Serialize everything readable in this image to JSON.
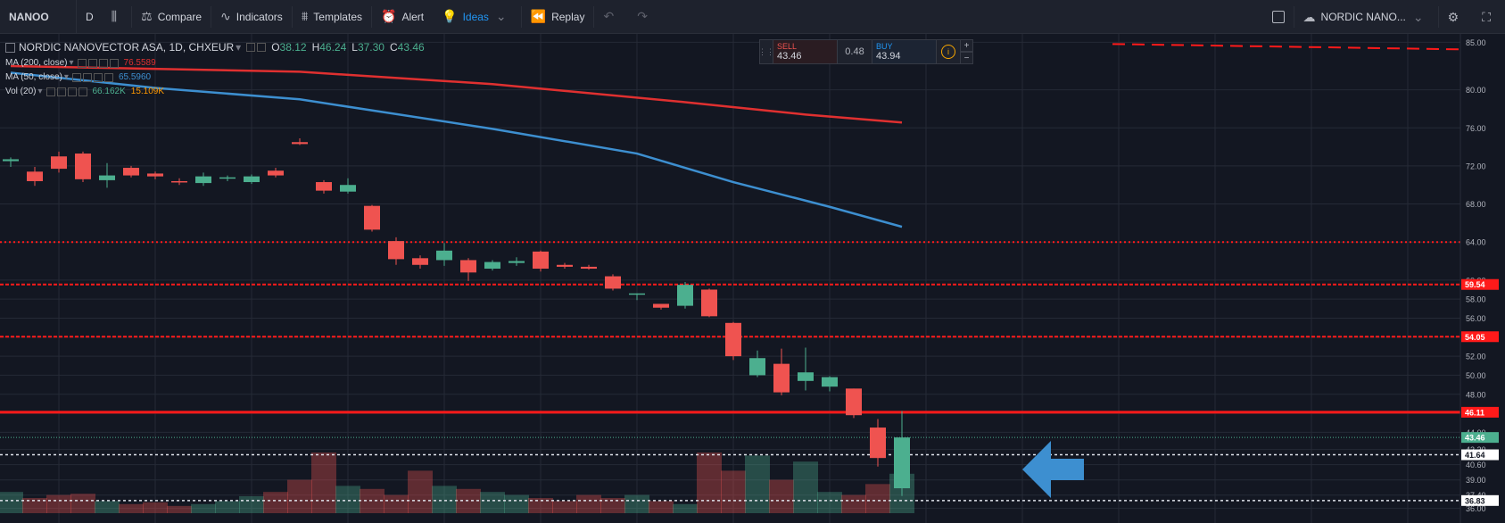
{
  "toolbar": {
    "symbol": "NANOO",
    "interval": "D",
    "compare": "Compare",
    "indicators": "Indicators",
    "templates": "Templates",
    "alert": "Alert",
    "ideas": "Ideas",
    "replay": "Replay",
    "symbol_name_right": "NORDIC NANO..."
  },
  "legend": {
    "title": "NORDIC NANOVECTOR ASA, 1D, CHXEUR",
    "o_label": "O",
    "o": "38.12",
    "h_label": "H",
    "h": "46.24",
    "l_label": "L",
    "l": "37.30",
    "c_label": "C",
    "c": "43.46",
    "ma200_label": "MA (200, close)",
    "ma200_value": "76.5589",
    "ma50_label": "MA (50, close)",
    "ma50_value": "65.5960",
    "vol_label": "Vol (20)",
    "vol_value1": "66.162K",
    "vol_value2": "15.109K"
  },
  "trade": {
    "sell_label": "SELL",
    "sell_price": "43.46",
    "spread": "0.48",
    "buy_label": "BUY",
    "buy_price": "43.94",
    "info": "i",
    "plus": "+",
    "minus": "−"
  },
  "colors": {
    "background": "#131722",
    "up": "#4caf8f",
    "down": "#ef5350",
    "ma200": "#e03030",
    "ma50": "#3d8fd0",
    "level": "#ff1a1a"
  },
  "chart_data": {
    "type": "candlestick",
    "title": "NORDIC NANOVECTOR ASA, 1D, CHXEUR",
    "ylim": [
      35.5,
      85.5
    ],
    "y_ticks": [
      36.0,
      37.4,
      39.0,
      40.6,
      42.2,
      44.0,
      46.0,
      48.0,
      50.0,
      52.0,
      54.0,
      56.0,
      58.0,
      60.0,
      64.0,
      68.0,
      72.0,
      76.0,
      80.0,
      85.0
    ],
    "y_axis_tick_labels": [
      "36.00",
      "37.40",
      "39.00",
      "40.60",
      "42.20",
      "44.00",
      "46.00",
      "48.00",
      "50.00",
      "52.00",
      "54.00",
      "56.00",
      "58.00",
      "60.00",
      "64.00",
      "68.00",
      "72.00",
      "76.00",
      "80.00",
      "85.00"
    ],
    "candles": [
      {
        "o": 72.5,
        "h": 72.9,
        "l": 71.9,
        "c": 72.7
      },
      {
        "o": 71.4,
        "h": 71.9,
        "l": 69.9,
        "c": 70.4
      },
      {
        "o": 73.0,
        "h": 73.5,
        "l": 71.3,
        "c": 71.7
      },
      {
        "o": 73.3,
        "h": 73.5,
        "l": 70.3,
        "c": 70.6
      },
      {
        "o": 70.5,
        "h": 72.3,
        "l": 69.7,
        "c": 71.0
      },
      {
        "o": 71.8,
        "h": 72.0,
        "l": 70.8,
        "c": 71.0
      },
      {
        "o": 71.2,
        "h": 71.4,
        "l": 70.6,
        "c": 70.9
      },
      {
        "o": 70.4,
        "h": 70.7,
        "l": 70.0,
        "c": 70.3
      },
      {
        "o": 70.2,
        "h": 71.3,
        "l": 69.9,
        "c": 70.9
      },
      {
        "o": 70.8,
        "h": 71.0,
        "l": 70.4,
        "c": 70.8
      },
      {
        "o": 70.3,
        "h": 71.1,
        "l": 70.1,
        "c": 70.9
      },
      {
        "o": 71.5,
        "h": 71.8,
        "l": 70.8,
        "c": 71.0
      },
      {
        "o": 74.5,
        "h": 74.9,
        "l": 74.2,
        "c": 74.3
      },
      {
        "o": 70.3,
        "h": 70.5,
        "l": 69.1,
        "c": 69.4
      },
      {
        "o": 69.3,
        "h": 70.7,
        "l": 69.1,
        "c": 70.0
      },
      {
        "o": 67.8,
        "h": 67.9,
        "l": 65.1,
        "c": 65.3
      },
      {
        "o": 64.1,
        "h": 64.5,
        "l": 61.6,
        "c": 62.2
      },
      {
        "o": 62.3,
        "h": 62.6,
        "l": 61.2,
        "c": 61.6
      },
      {
        "o": 62.1,
        "h": 63.9,
        "l": 61.5,
        "c": 63.1
      },
      {
        "o": 62.1,
        "h": 62.3,
        "l": 59.9,
        "c": 60.8
      },
      {
        "o": 61.2,
        "h": 62.1,
        "l": 61.0,
        "c": 61.9
      },
      {
        "o": 61.8,
        "h": 62.4,
        "l": 61.5,
        "c": 62.0
      },
      {
        "o": 63.0,
        "h": 63.1,
        "l": 60.9,
        "c": 61.2
      },
      {
        "o": 61.6,
        "h": 61.8,
        "l": 61.2,
        "c": 61.4
      },
      {
        "o": 61.4,
        "h": 61.6,
        "l": 61.1,
        "c": 61.2
      },
      {
        "o": 60.4,
        "h": 60.6,
        "l": 58.9,
        "c": 59.1
      },
      {
        "o": 58.5,
        "h": 58.6,
        "l": 57.9,
        "c": 58.6
      },
      {
        "o": 57.5,
        "h": 57.5,
        "l": 56.9,
        "c": 57.1
      },
      {
        "o": 57.3,
        "h": 59.8,
        "l": 57.0,
        "c": 59.5
      },
      {
        "o": 59.0,
        "h": 59.1,
        "l": 56.1,
        "c": 56.2
      },
      {
        "o": 55.5,
        "h": 55.6,
        "l": 51.6,
        "c": 52.0
      },
      {
        "o": 50.0,
        "h": 52.6,
        "l": 49.8,
        "c": 51.8
      },
      {
        "o": 51.2,
        "h": 52.8,
        "l": 47.9,
        "c": 48.2
      },
      {
        "o": 49.4,
        "h": 52.9,
        "l": 48.4,
        "c": 50.3
      },
      {
        "o": 48.8,
        "h": 49.9,
        "l": 48.3,
        "c": 49.8
      },
      {
        "o": 48.6,
        "h": 48.6,
        "l": 45.5,
        "c": 45.8
      },
      {
        "o": 44.5,
        "h": 45.4,
        "l": 40.4,
        "c": 41.3
      },
      {
        "o": 38.12,
        "h": 46.24,
        "l": 37.3,
        "c": 43.46
      }
    ],
    "volume_relative": [
      0.35,
      0.25,
      0.3,
      0.32,
      0.2,
      0.15,
      0.18,
      0.12,
      0.15,
      0.2,
      0.28,
      0.35,
      0.55,
      1.0,
      0.45,
      0.4,
      0.3,
      0.7,
      0.45,
      0.4,
      0.35,
      0.3,
      0.25,
      0.2,
      0.3,
      0.25,
      0.3,
      0.2,
      0.15,
      1.0,
      0.7,
      0.95,
      0.55,
      0.85,
      0.35,
      0.3,
      0.48,
      0.65
    ],
    "ma200": [
      {
        "i": 0,
        "v": 82.5
      },
      {
        "i": 12,
        "v": 81.9
      },
      {
        "i": 20,
        "v": 80.6
      },
      {
        "i": 28,
        "v": 78.7
      },
      {
        "i": 33,
        "v": 77.4
      },
      {
        "i": 37,
        "v": 76.56
      }
    ],
    "ma50": [
      {
        "i": 0,
        "v": 81.8
      },
      {
        "i": 6,
        "v": 80.2
      },
      {
        "i": 12,
        "v": 79.0
      },
      {
        "i": 20,
        "v": 75.9
      },
      {
        "i": 26,
        "v": 73.3
      },
      {
        "i": 30,
        "v": 70.3
      },
      {
        "i": 34,
        "v": 67.7
      },
      {
        "i": 37,
        "v": 65.6
      }
    ],
    "horizontal_levels": [
      {
        "price": 85.0,
        "style": "dashed",
        "label": ""
      },
      {
        "price": 64.0,
        "style": "dotted",
        "label": ""
      },
      {
        "price": 59.54,
        "style": "dashed",
        "label": "59.54"
      },
      {
        "price": 54.05,
        "style": "dashed",
        "label": "54.05"
      },
      {
        "price": 46.11,
        "style": "solid",
        "label": "46.11"
      }
    ],
    "current_price": {
      "price": 43.46,
      "label": "43.46"
    },
    "white_levels": [
      {
        "price": 41.64,
        "label": "41.64"
      },
      {
        "price": 36.83,
        "label": "36.83"
      }
    ],
    "annotation": "blue arrow pointing left toward last candle"
  }
}
